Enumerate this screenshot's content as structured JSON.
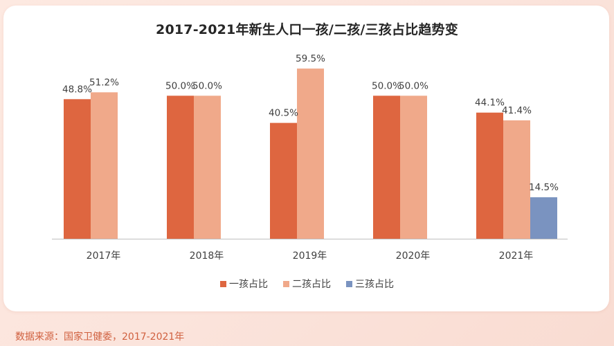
{
  "chart_data": {
    "type": "bar",
    "title": "2017-2021年新生人口一孩/二孩/三孩占比趋势变",
    "categories": [
      "2017年",
      "2018年",
      "2019年",
      "2020年",
      "2021年"
    ],
    "series": [
      {
        "name": "一孩占比",
        "color": "#de6640",
        "values": [
          48.8,
          50.0,
          40.5,
          50.0,
          44.1
        ],
        "labels": [
          "48.8%",
          "50.0%",
          "40.5%",
          "50.0%",
          "44.1%"
        ]
      },
      {
        "name": "二孩占比",
        "color": "#f0a98a",
        "values": [
          51.2,
          50.0,
          59.5,
          50.0,
          41.4
        ],
        "labels": [
          "51.2%",
          "50.0%",
          "59.5%",
          "50.0%",
          "41.4%"
        ]
      },
      {
        "name": "三孩占比",
        "color": "#7a93c0",
        "values": [
          null,
          null,
          null,
          null,
          14.5
        ],
        "labels": [
          null,
          null,
          null,
          null,
          "14.5%"
        ]
      }
    ],
    "xlabel": "",
    "ylabel": "",
    "ylim": [
      0,
      60
    ],
    "grid": false,
    "legend_position": "bottom"
  },
  "source": "数据来源：国家卫健委，2017-2021年"
}
